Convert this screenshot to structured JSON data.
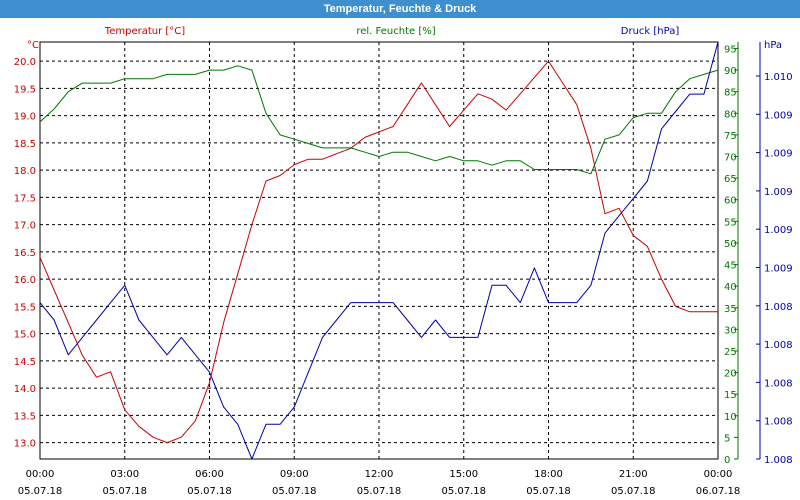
{
  "window": {
    "title": "Temperatur, Feuchte & Druck"
  },
  "chart_data": {
    "type": "line",
    "title": "Temperatur, Feuchte & Druck",
    "grid": true,
    "xlim": [
      "00:00",
      "24:00"
    ],
    "x_ticks": [
      {
        "time": "00:00",
        "date": "05.07.18"
      },
      {
        "time": "03:00",
        "date": "05.07.18"
      },
      {
        "time": "06:00",
        "date": "05.07.18"
      },
      {
        "time": "09:00",
        "date": "05.07.18"
      },
      {
        "time": "12:00",
        "date": "05.07.18"
      },
      {
        "time": "15:00",
        "date": "05.07.18"
      },
      {
        "time": "18:00",
        "date": "05.07.18"
      },
      {
        "time": "21:00",
        "date": "05.07.18"
      },
      {
        "time": "00:00",
        "date": "06.07.18"
      }
    ],
    "axes": {
      "temperature": {
        "unit": "°C",
        "label": "Temperatur [°C]",
        "range": [
          12.7,
          20.35
        ],
        "ticks": [
          "13.0",
          "13.5",
          "14.0",
          "14.5",
          "15.0",
          "15.5",
          "16.0",
          "16.5",
          "17.0",
          "17.5",
          "18.0",
          "18.5",
          "19.0",
          "19.5",
          "20.0"
        ],
        "color": "#cc0000"
      },
      "humidity": {
        "unit": "%",
        "label": "rel. Feuchte [%]",
        "range": [
          0,
          96.5
        ],
        "ticks": [
          "0",
          "5",
          "10",
          "15",
          "20",
          "25",
          "30",
          "35",
          "40",
          "45",
          "50",
          "55",
          "60",
          "65",
          "70",
          "75",
          "80",
          "85",
          "90",
          "95"
        ],
        "color": "#007700"
      },
      "pressure": {
        "unit": "hPa",
        "label": "Druck [hPa]",
        "range": [
          1.008,
          1.0104
        ],
        "ticks": [
          "1.008",
          "1.008",
          "1.008",
          "1.008",
          "1.008",
          "1.009",
          "1.009",
          "1.009",
          "1.009",
          "1.009",
          "1.010"
        ],
        "color": "#0000aa"
      }
    },
    "series": [
      {
        "name": "Temperatur [°C]",
        "axis": "temperature",
        "color": "#cc0000",
        "x": [
          "00:00",
          "00:30",
          "01:00",
          "01:30",
          "02:00",
          "02:30",
          "03:00",
          "03:30",
          "04:00",
          "04:30",
          "05:00",
          "05:30",
          "06:00",
          "06:30",
          "07:00",
          "07:30",
          "08:00",
          "08:30",
          "09:00",
          "09:30",
          "10:00",
          "10:30",
          "11:00",
          "11:30",
          "12:00",
          "12:30",
          "13:00",
          "13:30",
          "14:00",
          "14:30",
          "15:00",
          "15:30",
          "16:00",
          "16:30",
          "17:00",
          "17:30",
          "18:00",
          "18:30",
          "19:00",
          "19:30",
          "20:00",
          "20:30",
          "21:00",
          "21:30",
          "22:00",
          "22:30",
          "23:00",
          "23:30",
          "24:00"
        ],
        "values": [
          16.4,
          15.8,
          15.2,
          14.6,
          14.2,
          14.3,
          13.6,
          13.3,
          13.1,
          13.0,
          13.1,
          13.4,
          14.1,
          15.2,
          16.1,
          17.0,
          17.8,
          17.9,
          18.1,
          18.2,
          18.2,
          18.3,
          18.4,
          18.6,
          18.7,
          18.8,
          19.2,
          19.6,
          19.2,
          18.8,
          19.1,
          19.4,
          19.3,
          19.1,
          19.4,
          19.7,
          20.0,
          19.6,
          19.2,
          18.4,
          17.2,
          17.3,
          16.8,
          16.6,
          16.0,
          15.5,
          15.4,
          15.4,
          15.4
        ]
      },
      {
        "name": "rel. Feuchte [%]",
        "axis": "humidity",
        "color": "#007700",
        "x": [
          "00:00",
          "00:30",
          "01:00",
          "01:30",
          "02:00",
          "02:30",
          "03:00",
          "03:30",
          "04:00",
          "04:30",
          "05:00",
          "05:30",
          "06:00",
          "06:30",
          "07:00",
          "07:30",
          "08:00",
          "08:30",
          "09:00",
          "09:30",
          "10:00",
          "10:30",
          "11:00",
          "11:30",
          "12:00",
          "12:30",
          "13:00",
          "13:30",
          "14:00",
          "14:30",
          "15:00",
          "15:30",
          "16:00",
          "16:30",
          "17:00",
          "17:30",
          "18:00",
          "18:30",
          "19:00",
          "19:30",
          "20:00",
          "20:30",
          "21:00",
          "21:30",
          "22:00",
          "22:30",
          "23:00",
          "23:30",
          "24:00"
        ],
        "values": [
          78,
          81,
          85,
          87,
          87,
          87,
          88,
          88,
          88,
          89,
          89,
          89,
          90,
          90,
          91,
          90,
          80,
          75,
          74,
          73,
          72,
          72,
          72,
          71,
          70,
          71,
          71,
          70,
          69,
          70,
          69,
          69,
          68,
          69,
          69,
          67,
          67,
          67,
          67,
          66,
          74,
          75,
          79,
          80,
          80,
          85,
          88,
          89,
          90
        ]
      },
      {
        "name": "Druck [hPa]",
        "axis": "pressure",
        "color": "#0000aa",
        "x": [
          "00:00",
          "00:30",
          "01:00",
          "01:30",
          "02:00",
          "02:30",
          "03:00",
          "03:30",
          "04:00",
          "04:30",
          "05:00",
          "05:30",
          "06:00",
          "06:30",
          "07:00",
          "07:30",
          "08:00",
          "08:30",
          "09:00",
          "09:30",
          "10:00",
          "10:30",
          "11:00",
          "11:30",
          "12:00",
          "12:30",
          "13:00",
          "13:30",
          "14:00",
          "14:30",
          "15:00",
          "15:30",
          "16:00",
          "16:30",
          "17:00",
          "17:30",
          "18:00",
          "18:30",
          "19:00",
          "19:30",
          "20:00",
          "20:30",
          "21:00",
          "21:30",
          "22:00",
          "22:30",
          "23:00",
          "23:30",
          "24:00"
        ],
        "values": [
          1.0089,
          1.0088,
          1.0086,
          1.0087,
          1.0088,
          1.0089,
          1.009,
          1.0088,
          1.0087,
          1.0086,
          1.0087,
          1.0086,
          1.0085,
          1.0083,
          1.0082,
          1.008,
          1.0082,
          1.0082,
          1.0083,
          1.0085,
          1.0087,
          1.0088,
          1.0089,
          1.0089,
          1.0089,
          1.0089,
          1.0088,
          1.0087,
          1.0088,
          1.0087,
          1.0087,
          1.0087,
          1.009,
          1.009,
          1.0089,
          1.0091,
          1.0089,
          1.0089,
          1.0089,
          1.009,
          1.0093,
          1.0094,
          1.0095,
          1.0096,
          1.0099,
          1.01,
          1.0101,
          1.0101,
          1.0104
        ]
      }
    ]
  }
}
